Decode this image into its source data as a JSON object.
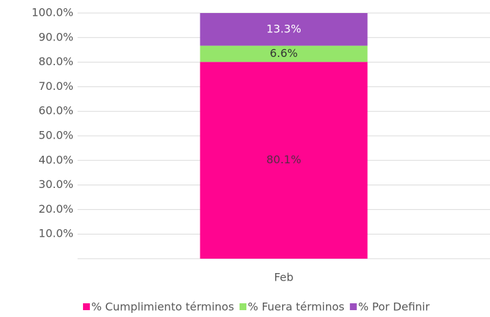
{
  "chart_data": {
    "type": "stacked_bar",
    "categories": [
      "Feb"
    ],
    "series": [
      {
        "name": "% Cumplimiento términos",
        "color": "#ff0590",
        "label_color": "#5a2a45",
        "values": [
          80.1
        ],
        "value_labels": [
          "80.1%"
        ]
      },
      {
        "name": "% Fuera términos",
        "color": "#95e56a",
        "label_color": "#333333",
        "values": [
          6.6
        ],
        "value_labels": [
          "6.6%"
        ]
      },
      {
        "name": "% Por Definir",
        "color": "#9c4fbf",
        "label_color": "#ffffff",
        "values": [
          13.3
        ],
        "value_labels": [
          "13.3%"
        ]
      }
    ],
    "ylim": [
      0,
      100
    ],
    "yticks": [
      {
        "value": 10,
        "label": "10.0%"
      },
      {
        "value": 20,
        "label": "20.0%"
      },
      {
        "value": 30,
        "label": "30.0%"
      },
      {
        "value": 40,
        "label": "40.0%"
      },
      {
        "value": 50,
        "label": "50.0%"
      },
      {
        "value": 60,
        "label": "60.0%"
      },
      {
        "value": 70,
        "label": "70.0%"
      },
      {
        "value": 80,
        "label": "80.0%"
      },
      {
        "value": 90,
        "label": "90.0%"
      },
      {
        "value": 100,
        "label": "100.0%"
      }
    ],
    "grid": true,
    "legend": "bottom"
  }
}
